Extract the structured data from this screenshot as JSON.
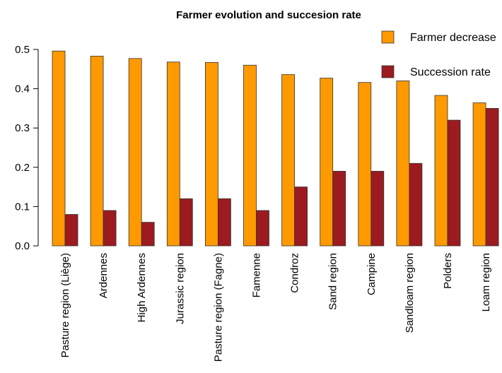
{
  "chart_data": {
    "type": "bar",
    "title": "Farmer evolution and succesion rate",
    "xlabel": "",
    "ylabel": "",
    "ylim": [
      0,
      0.5
    ],
    "yticks": [
      "0.0",
      "0.1",
      "0.2",
      "0.3",
      "0.4",
      "0.5"
    ],
    "legend_position": "top-right",
    "grid": false,
    "categories": [
      "Pasture region (Liège)",
      "Ardennes",
      "High Ardennes",
      "Jurassic region",
      "Pasture region (Fagne)",
      "Famenne",
      "Condroz",
      "Sand region",
      "Campine",
      "Sandloam region",
      "Polders",
      "Loam region"
    ],
    "series": [
      {
        "name": "Farmer decrease",
        "color": "#FF9900",
        "values": [
          0.496,
          0.483,
          0.477,
          0.468,
          0.467,
          0.46,
          0.436,
          0.427,
          0.416,
          0.42,
          0.383,
          0.364
        ]
      },
      {
        "name": "Succession rate",
        "color": "#9B1B20",
        "values": [
          0.08,
          0.09,
          0.06,
          0.12,
          0.12,
          0.09,
          0.15,
          0.19,
          0.19,
          0.21,
          0.32,
          0.35
        ]
      }
    ]
  }
}
